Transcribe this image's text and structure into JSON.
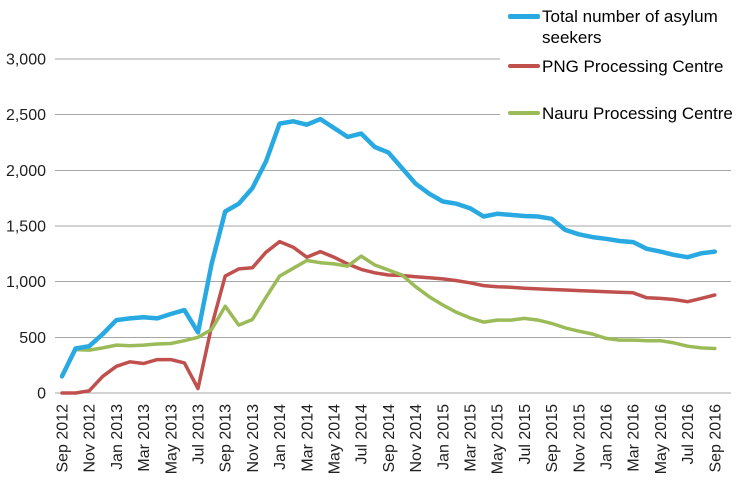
{
  "chart_data": {
    "type": "line",
    "title": "",
    "xlabel": "",
    "ylabel": "",
    "ylim": [
      0,
      3000
    ],
    "grid": "horizontal",
    "legend_position": "top-right",
    "x_label_rotation_degrees": 90,
    "x_tick_step": 2,
    "colors": {
      "total": "#29A9E1",
      "png": "#C0504D",
      "nauru": "#9BBB59",
      "gridline": "#A6A6A6",
      "axis_text": "#202020",
      "background": "#FFFFFF"
    },
    "y_ticks": [
      0,
      500,
      1000,
      1500,
      2000,
      2500,
      3000
    ],
    "y_tick_labels": [
      "0",
      "500",
      "1,000",
      "1,500",
      "2,000",
      "2,500",
      "3,000"
    ],
    "x": [
      "Sep 2012",
      "Oct 2012",
      "Nov 2012",
      "Dec 2012",
      "Jan 2013",
      "Feb 2013",
      "Mar 2013",
      "Apr 2013",
      "May 2013",
      "Jun 2013",
      "Jul 2013",
      "Aug 2013",
      "Sep 2013",
      "Oct 2013",
      "Nov 2013",
      "Dec 2013",
      "Jan 2014",
      "Feb 2014",
      "Mar 2014",
      "Apr 2014",
      "May 2014",
      "Jun 2014",
      "Jul 2014",
      "Aug 2014",
      "Sep 2014",
      "Oct 2014",
      "Nov 2014",
      "Dec 2014",
      "Jan 2015",
      "Feb 2015",
      "Mar 2015",
      "Apr 2015",
      "May 2015",
      "Jun 2015",
      "Jul 2015",
      "Aug 2015",
      "Sep 2015",
      "Oct 2015",
      "Nov 2015",
      "Dec 2015",
      "Jan 2016",
      "Feb 2016",
      "Mar 2016",
      "Apr 2016",
      "May 2016",
      "Jun 2016",
      "Jul 2016",
      "Aug 2016",
      "Sep 2016"
    ],
    "visible_x_tick_labels": [
      "Sep 2012",
      "Nov 2012",
      "Jan 2013",
      "Mar 2013",
      "May 2013",
      "Jul 2013",
      "Sep 2013",
      "Nov 2013",
      "Jan 2014",
      "Mar 2014",
      "May 2014",
      "Jul 2014",
      "Sep 2014",
      "Nov 2014",
      "Jan 2015",
      "Mar 2015",
      "May 2015",
      "Jul 2015",
      "Sep 2015",
      "Nov 2015",
      "Jan 2016",
      "Mar 2016",
      "May 2016",
      "Jul 2016",
      "Sep 2016"
    ],
    "series": [
      {
        "name": "Total number of asylum seekers",
        "color": "#29A9E1",
        "line_width": 4.5,
        "values": [
          150,
          400,
          420,
          530,
          655,
          670,
          680,
          670,
          710,
          745,
          545,
          1160,
          1630,
          1700,
          1840,
          2080,
          2420,
          2440,
          2410,
          2460,
          2380,
          2300,
          2330,
          2210,
          2160,
          2020,
          1880,
          1790,
          1720,
          1700,
          1660,
          1585,
          1610,
          1600,
          1590,
          1585,
          1565,
          1465,
          1425,
          1400,
          1385,
          1365,
          1355,
          1295,
          1270,
          1240,
          1220,
          1255,
          1270
        ]
      },
      {
        "name": "PNG Processing Centre",
        "color": "#C0504D",
        "line_width": 3.5,
        "values": [
          0,
          0,
          20,
          150,
          240,
          280,
          265,
          300,
          300,
          270,
          40,
          600,
          1050,
          1115,
          1125,
          1265,
          1360,
          1310,
          1220,
          1270,
          1220,
          1160,
          1110,
          1080,
          1060,
          1055,
          1045,
          1035,
          1025,
          1010,
          990,
          965,
          955,
          950,
          940,
          935,
          930,
          925,
          920,
          915,
          910,
          905,
          900,
          855,
          850,
          840,
          820,
          850,
          880
        ]
      },
      {
        "name": "Nauru Processing Centre",
        "color": "#9BBB59",
        "line_width": 3.5,
        "values": [
          145,
          390,
          385,
          405,
          430,
          425,
          430,
          440,
          445,
          470,
          500,
          570,
          780,
          610,
          660,
          860,
          1050,
          1120,
          1190,
          1170,
          1160,
          1140,
          1230,
          1150,
          1105,
          1060,
          955,
          865,
          790,
          725,
          675,
          637,
          655,
          655,
          670,
          655,
          625,
          585,
          555,
          530,
          490,
          475,
          475,
          470,
          470,
          450,
          420,
          405,
          400
        ]
      }
    ]
  }
}
